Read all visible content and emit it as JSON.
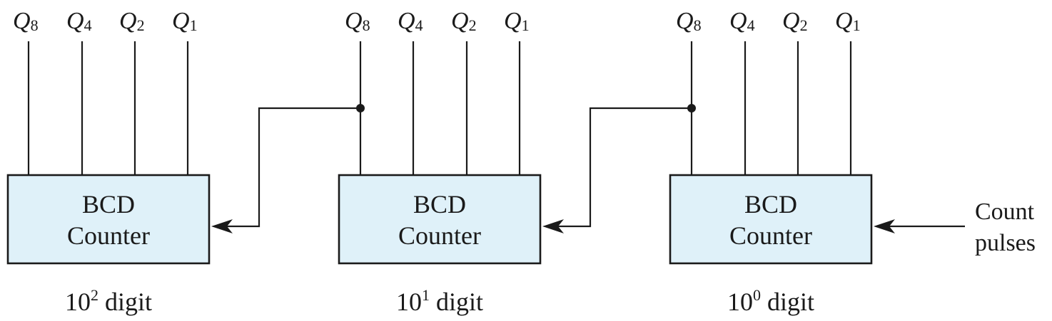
{
  "counters": [
    {
      "line1": "BCD",
      "line2": "Counter",
      "digit_base": "10",
      "digit_exp": "2",
      "digit_word": "digit"
    },
    {
      "line1": "BCD",
      "line2": "Counter",
      "digit_base": "10",
      "digit_exp": "1",
      "digit_word": "digit"
    },
    {
      "line1": "BCD",
      "line2": "Counter",
      "digit_base": "10",
      "digit_exp": "0",
      "digit_word": "digit"
    }
  ],
  "outputs": [
    {
      "letter": "Q",
      "sub": "8"
    },
    {
      "letter": "Q",
      "sub": "4"
    },
    {
      "letter": "Q",
      "sub": "2"
    },
    {
      "letter": "Q",
      "sub": "1"
    }
  ],
  "input": {
    "line1": "Count",
    "line2": "pulses"
  },
  "colors": {
    "box_fill": "#dff1f9",
    "line": "#1a1a1a"
  }
}
